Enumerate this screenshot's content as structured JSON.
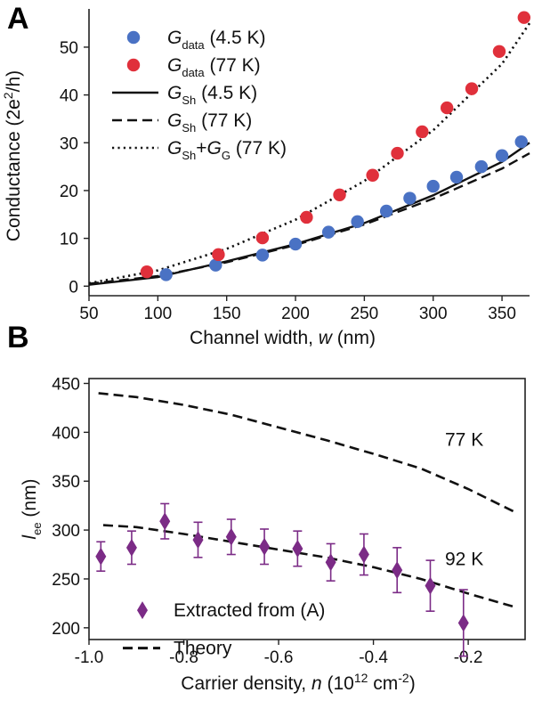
{
  "colors": {
    "blue": "#4a72c4",
    "red": "#e0303b",
    "purple": "#7b2b86",
    "line": "#111111"
  },
  "chart_data": [
    {
      "panel": "A",
      "type": "scatter",
      "xlabel": {
        "pre": "Channel width, ",
        "var": "w",
        "post": " (nm)"
      },
      "ylabel": {
        "pre": "Conductance (2e",
        "sup": "2",
        "post": "/h)"
      },
      "xlim": [
        50,
        370
      ],
      "ylim": [
        -2,
        58
      ],
      "xticks": [
        50,
        100,
        150,
        200,
        250,
        300,
        350
      ],
      "yticks": [
        0,
        10,
        20,
        30,
        40,
        50
      ],
      "legend": [
        {
          "main": "G",
          "sub": "data",
          "tail": "(4.5 K)"
        },
        {
          "main": "G",
          "sub": "data",
          "tail": "(77 K)"
        },
        {
          "main": "G",
          "sub": "Sh",
          "tail": "(4.5 K)"
        },
        {
          "main": "G",
          "sub": "Sh",
          "tail": "(77 K)"
        },
        {
          "main": "G",
          "sub": "Sh",
          "mid": "+G",
          "sub2": "G",
          "tail": "(77 K)"
        }
      ],
      "series": [
        {
          "kind": "points",
          "color": "blue",
          "x": [
            106,
            142,
            176,
            200,
            224,
            245,
            266,
            283,
            300,
            317,
            335,
            350,
            364
          ],
          "y": [
            2.4,
            4.4,
            6.5,
            8.8,
            11.3,
            13.5,
            15.7,
            18.4,
            20.9,
            22.8,
            25.0,
            27.3,
            30.2
          ]
        },
        {
          "kind": "points",
          "color": "red",
          "x": [
            92,
            144,
            176,
            208,
            232,
            256,
            274,
            292,
            310,
            328,
            348,
            366
          ],
          "y": [
            3.0,
            6.6,
            10.1,
            14.4,
            19.1,
            23.2,
            27.8,
            32.3,
            37.3,
            41.3,
            49.1,
            56.2
          ]
        },
        {
          "kind": "line",
          "dash": "solid",
          "x": [
            50,
            100,
            150,
            200,
            250,
            300,
            350,
            370
          ],
          "y": [
            0.3,
            1.9,
            5.2,
            8.8,
            13.2,
            19.0,
            26.0,
            30.0
          ]
        },
        {
          "kind": "line",
          "dash": "dashed",
          "x": [
            50,
            100,
            150,
            200,
            250,
            300,
            350,
            370
          ],
          "y": [
            0.5,
            2.1,
            5.0,
            8.6,
            12.9,
            18.3,
            24.6,
            27.8
          ]
        },
        {
          "kind": "line",
          "dash": "dotted",
          "x": [
            50,
            100,
            150,
            200,
            250,
            300,
            350,
            370
          ],
          "y": [
            0.6,
            3.3,
            7.8,
            13.9,
            22.0,
            32.6,
            46.5,
            55.0
          ]
        }
      ]
    },
    {
      "panel": "B",
      "type": "line",
      "xlabel": {
        "pre": "Carrier density, ",
        "var": "n",
        "post": " (10",
        "sup": "12",
        "post2": " cm",
        "sup2": "-2",
        "post3": ")"
      },
      "ylabel": {
        "main": "l",
        "sub": "ee",
        "post": " (nm)"
      },
      "xlim": [
        -1.0,
        -0.08
      ],
      "ylim": [
        188,
        455
      ],
      "xticks": [
        -1.0,
        -0.8,
        -0.6,
        -0.4,
        -0.2
      ],
      "xticklabels": [
        "-1.0",
        "-0.8",
        "-0.6",
        "-0.4",
        "-0.2"
      ],
      "yticks": [
        200,
        250,
        300,
        350,
        400,
        450
      ],
      "legend": [
        {
          "label": "Extracted from (A)"
        },
        {
          "label": "Theory"
        }
      ],
      "annotations": [
        "77 K",
        "92 K"
      ],
      "series": [
        {
          "kind": "line",
          "dash": "dashed",
          "label": "77 K",
          "x": [
            -0.98,
            -0.9,
            -0.8,
            -0.7,
            -0.6,
            -0.5,
            -0.4,
            -0.3,
            -0.2,
            -0.1
          ],
          "y": [
            440,
            436,
            428,
            418,
            405,
            392,
            378,
            363,
            342,
            318
          ]
        },
        {
          "kind": "line",
          "dash": "dashed",
          "label": "92 K",
          "x": [
            -0.97,
            -0.9,
            -0.8,
            -0.7,
            -0.6,
            -0.5,
            -0.4,
            -0.3,
            -0.2,
            -0.1
          ],
          "y": [
            305,
            303,
            296,
            288,
            280,
            272,
            262,
            250,
            235,
            221
          ]
        },
        {
          "kind": "errorpoints",
          "color": "purple",
          "x": [
            -0.975,
            -0.91,
            -0.84,
            -0.77,
            -0.7,
            -0.63,
            -0.56,
            -0.49,
            -0.42,
            -0.35,
            -0.28,
            -0.21
          ],
          "y": [
            273,
            282,
            309,
            290,
            293,
            283,
            281,
            267,
            275,
            259,
            243,
            205
          ],
          "err": [
            15,
            17,
            18,
            18,
            18,
            18,
            18,
            19,
            21,
            23,
            26,
            34
          ]
        }
      ]
    }
  ]
}
